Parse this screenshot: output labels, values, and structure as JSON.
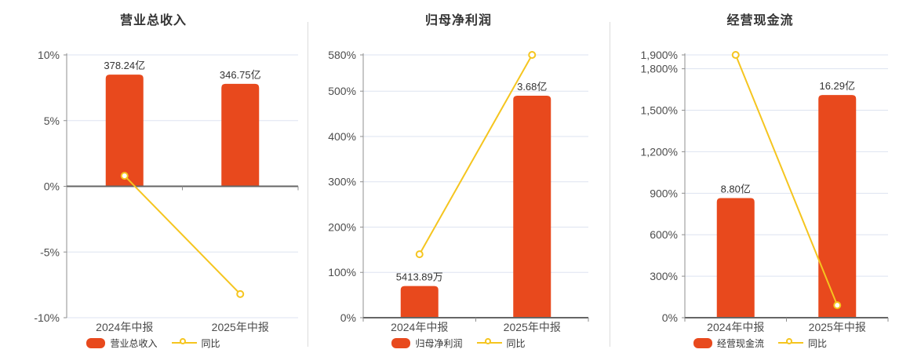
{
  "page": {
    "background": "#ffffff"
  },
  "colors": {
    "bar": "#e8491d",
    "line": "#f5c51f",
    "grid": "#dde3f0",
    "axis": "#666666",
    "axis_light": "#8f8f8f",
    "text": "#4d4d4d",
    "title": "#333333",
    "divider": "#dcdcdc"
  },
  "chart_data": [
    {
      "type": "bar",
      "title": "营业总收入",
      "categories": [
        "2024年中报",
        "2025年中报"
      ],
      "bar_series": {
        "name": "营业总收入",
        "labels": [
          "378.24亿",
          "346.75亿"
        ],
        "axis_heights": [
          8.5,
          7.8
        ]
      },
      "line_series": {
        "name": "同比",
        "values": [
          0.8,
          -8.2
        ]
      },
      "y_ticks": [
        10,
        5,
        0,
        -5,
        -10
      ],
      "y_tick_labels": [
        "10%",
        "5%",
        "0%",
        "-5%",
        "-10%"
      ],
      "ylim": [
        -10,
        10
      ],
      "grid": true,
      "legend_position": "bottom"
    },
    {
      "type": "bar",
      "title": "归母净利润",
      "categories": [
        "2024年中报",
        "2025年中报"
      ],
      "bar_series": {
        "name": "归母净利润",
        "labels": [
          "5413.89万",
          "3.68亿"
        ],
        "axis_heights": [
          70,
          490
        ]
      },
      "line_series": {
        "name": "同比",
        "values": [
          140,
          580
        ]
      },
      "y_ticks": [
        580,
        500,
        400,
        300,
        200,
        100,
        0
      ],
      "y_tick_labels": [
        "580%",
        "500%",
        "400%",
        "300%",
        "200%",
        "100%",
        "0%"
      ],
      "ylim": [
        0,
        580
      ],
      "grid": true,
      "legend_position": "bottom"
    },
    {
      "type": "bar",
      "title": "经营现金流",
      "categories": [
        "2024年中报",
        "2025年中报"
      ],
      "bar_series": {
        "name": "经营现金流",
        "labels": [
          "8.80亿",
          "16.29亿"
        ],
        "axis_heights": [
          865,
          1610
        ]
      },
      "line_series": {
        "name": "同比",
        "values": [
          1900,
          90
        ]
      },
      "y_ticks": [
        1900,
        1800,
        1500,
        1200,
        900,
        600,
        300,
        0
      ],
      "y_tick_labels": [
        "1,900%",
        "1,800%",
        "1,500%",
        "1,200%",
        "900%",
        "600%",
        "300%",
        "0%"
      ],
      "ylim": [
        0,
        1900
      ],
      "grid": true,
      "legend_position": "bottom"
    }
  ]
}
